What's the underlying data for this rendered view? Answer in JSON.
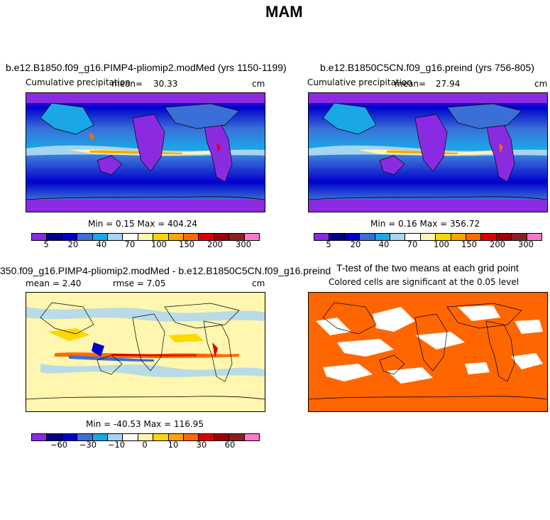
{
  "figure_title": "MAM",
  "panels": {
    "top_left": {
      "title": "b.e12.B1850.f09_g16.PIMP4-pliomip2.modMed (yrs 1150-1199)",
      "subtitle": "Cumulative precipitation",
      "mean_label": "mean=",
      "mean_value": "30.33",
      "units": "cm",
      "minmax": "Min =    0.15 Max = 404.24"
    },
    "top_right": {
      "title": "b.e12.B1850C5CN.f09_g16.preind (yrs 756-805)",
      "subtitle": "Cumulative precipitation",
      "mean_label": "mean=",
      "mean_value": "27.94",
      "units": "cm",
      "minmax": "Min =    0.16 Max = 356.72"
    },
    "bottom_left": {
      "title": "350.f09_g16.PIMP4-pliomip2.modMed - b.e12.B1850C5CN.f09_g16.preind",
      "mean_text": "mean =    2.40",
      "rmse_text": "rmse =    7.05",
      "units": "cm",
      "minmax": "Min = -40.53 Max = 116.95"
    },
    "bottom_right": {
      "title": "T-test of the two means at each grid point",
      "subtitle": "Colored cells are significant at the 0.05 level"
    }
  },
  "colorbars": {
    "precip": {
      "colors": [
        "#8a2be2",
        "#00008b",
        "#0000cd",
        "#3a6fd8",
        "#1aa7e8",
        "#a6d4f2",
        "#ffffff",
        "#fff6b0",
        "#ffd700",
        "#ffa500",
        "#ff6a00",
        "#e00000",
        "#a00000",
        "#8b2020",
        "#ff77cc"
      ],
      "tick_labels": [
        "5",
        "20",
        "40",
        "70",
        "100",
        "150",
        "200",
        "300"
      ]
    },
    "diff": {
      "colors": [
        "#8a2be2",
        "#00008b",
        "#0000cd",
        "#3a6fd8",
        "#1aa7e8",
        "#a6d4f2",
        "#ffffff",
        "#fff6b0",
        "#ffd700",
        "#ffa500",
        "#ff6a00",
        "#e00000",
        "#a00000",
        "#8b2020",
        "#ff77cc"
      ],
      "tick_labels": [
        "−60",
        "−30",
        "−10",
        "0",
        "10",
        "30",
        "60"
      ]
    }
  },
  "colors": {
    "ttest_fill": "#ff6600",
    "ocean_mid": "#3a6fd8"
  }
}
